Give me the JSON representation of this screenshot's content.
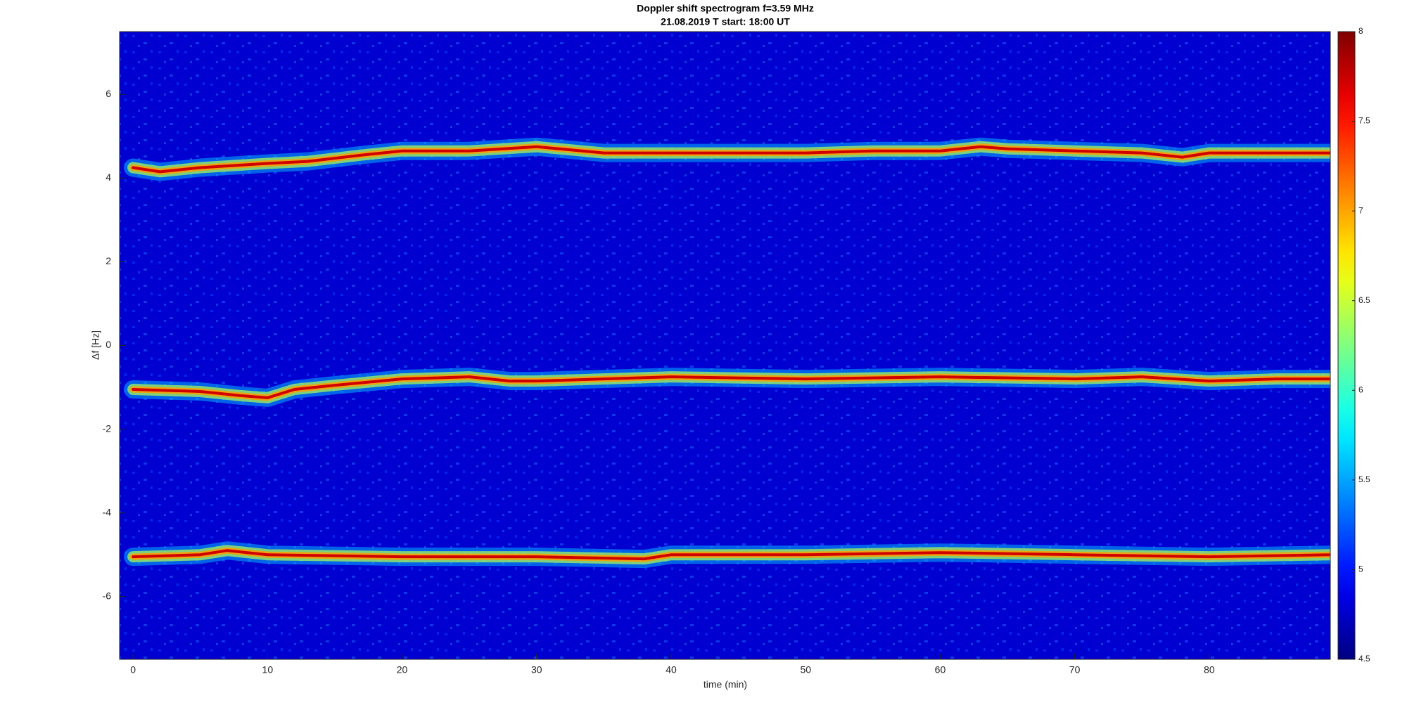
{
  "chart_data": {
    "type": "spectrogram",
    "title": "Doppler shift spectrogram f=3.59 MHz",
    "subtitle": "21.08.2019   T start: 18:00 UT",
    "x_label": "time (min)",
    "y_label": "Δf [Hz]",
    "xlim": [
      -1,
      89
    ],
    "ylim": [
      -7.5,
      7.5
    ],
    "xticks": [
      0,
      10,
      20,
      30,
      40,
      50,
      60,
      70,
      80
    ],
    "yticks": [
      -6,
      -4,
      -2,
      0,
      2,
      4,
      6
    ],
    "colormap": "jet",
    "clim": [
      4.5,
      8
    ],
    "cticks": [
      4.5,
      5,
      5.5,
      6,
      6.5,
      7,
      7.5,
      8
    ],
    "series": [
      {
        "x": [
          0,
          2,
          5,
          10,
          13,
          17,
          20,
          25,
          30,
          35,
          40,
          45,
          50,
          55,
          60,
          63,
          65,
          70,
          75,
          78,
          80,
          85,
          89
        ],
        "values": [
          4.25,
          4.15,
          4.25,
          4.35,
          4.4,
          4.55,
          4.65,
          4.65,
          4.75,
          4.6,
          4.6,
          4.6,
          4.6,
          4.65,
          4.65,
          4.75,
          4.7,
          4.65,
          4.6,
          4.5,
          4.6,
          4.6,
          4.6
        ]
      },
      {
        "x": [
          0,
          5,
          8,
          10,
          12,
          15,
          20,
          25,
          28,
          30,
          40,
          50,
          60,
          70,
          75,
          80,
          85,
          89
        ],
        "values": [
          -1.05,
          -1.1,
          -1.2,
          -1.25,
          -1.05,
          -0.95,
          -0.8,
          -0.75,
          -0.85,
          -0.85,
          -0.75,
          -0.8,
          -0.75,
          -0.8,
          -0.75,
          -0.85,
          -0.8,
          -0.8
        ]
      },
      {
        "x": [
          0,
          5,
          7,
          10,
          20,
          30,
          38,
          40,
          50,
          60,
          70,
          80,
          89
        ],
        "values": [
          -5.05,
          -5.0,
          -4.9,
          -5.0,
          -5.05,
          -5.05,
          -5.1,
          -5.0,
          -5.0,
          -4.95,
          -5.0,
          -5.05,
          -5.0
        ]
      }
    ]
  }
}
